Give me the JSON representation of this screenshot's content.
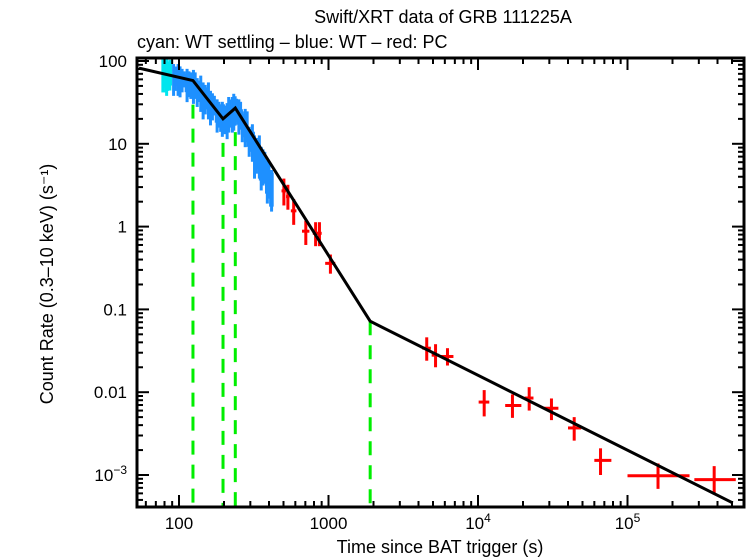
{
  "chart_data": {
    "type": "scatter",
    "title": "Swift/XRT data of GRB 111225A",
    "subtitle": "cyan: WT settling – blue: WT – red: PC",
    "xlabel": "Time since BAT trigger (s)",
    "ylabel": "Count Rate (0.3–10 keV) (s⁻¹)",
    "xscale": "log",
    "yscale": "log",
    "xlim": [
      54,
      610000
    ],
    "ylim": [
      0.00045,
      110
    ],
    "x_ticks": [
      {
        "value": 100,
        "label": "100",
        "sup": ""
      },
      {
        "value": 1000,
        "label": "1000",
        "sup": ""
      },
      {
        "value": 10000,
        "label": "10",
        "sup": "4"
      },
      {
        "value": 100000,
        "label": "10",
        "sup": "5"
      }
    ],
    "y_ticks": [
      {
        "value": 100,
        "label": "100",
        "sup": ""
      },
      {
        "value": 10,
        "label": "10",
        "sup": ""
      },
      {
        "value": 1,
        "label": "1",
        "sup": ""
      },
      {
        "value": 0.1,
        "label": "0.1",
        "sup": ""
      },
      {
        "value": 0.01,
        "label": "0.01",
        "sup": ""
      },
      {
        "value": 0.001,
        "label": "10",
        "sup": "−3"
      }
    ],
    "colors": {
      "wt_settling": "#00e5ee",
      "wt": "#1e90ff",
      "pc": "#ff0000",
      "fit": "#000000",
      "breaks": "#00ee00"
    },
    "series": [
      {
        "name": "WT settling",
        "color_key": "wt_settling",
        "style": "band",
        "points": [
          {
            "x": 78,
            "lo": 55,
            "hi": 95
          },
          {
            "x": 82,
            "lo": 50,
            "hi": 92
          },
          {
            "x": 86,
            "lo": 58,
            "hi": 90
          }
        ]
      },
      {
        "name": "WT",
        "color_key": "wt",
        "style": "band",
        "points": [
          {
            "x": 92,
            "lo": 50,
            "hi": 80
          },
          {
            "x": 100,
            "lo": 48,
            "hi": 75
          },
          {
            "x": 110,
            "lo": 42,
            "hi": 70
          },
          {
            "x": 120,
            "lo": 40,
            "hi": 68
          },
          {
            "x": 130,
            "lo": 32,
            "hi": 58
          },
          {
            "x": 145,
            "lo": 26,
            "hi": 48
          },
          {
            "x": 160,
            "lo": 22,
            "hi": 38
          },
          {
            "x": 175,
            "lo": 18,
            "hi": 30
          },
          {
            "x": 190,
            "lo": 16,
            "hi": 28
          },
          {
            "x": 200,
            "lo": 15,
            "hi": 27
          },
          {
            "x": 215,
            "lo": 18,
            "hi": 32
          },
          {
            "x": 230,
            "lo": 19,
            "hi": 35
          },
          {
            "x": 245,
            "lo": 17,
            "hi": 30
          },
          {
            "x": 265,
            "lo": 12,
            "hi": 23
          },
          {
            "x": 290,
            "lo": 8,
            "hi": 15
          },
          {
            "x": 320,
            "lo": 5,
            "hi": 11
          },
          {
            "x": 350,
            "lo": 3.6,
            "hi": 8
          },
          {
            "x": 380,
            "lo": 2.5,
            "hi": 5.5
          },
          {
            "x": 410,
            "lo": 2.0,
            "hi": 4.2
          }
        ]
      },
      {
        "name": "PC",
        "color_key": "pc",
        "style": "cross",
        "points": [
          {
            "x": 503,
            "y": 2.7,
            "xerr": [
              18,
              18
            ],
            "yerr": [
              0.9,
              1.1
            ]
          },
          {
            "x": 535,
            "y": 2.3,
            "xerr": [
              15,
              15
            ],
            "yerr": [
              0.7,
              0.9
            ]
          },
          {
            "x": 585,
            "y": 1.55,
            "xerr": [
              25,
              25
            ],
            "yerr": [
              0.5,
              0.6
            ]
          },
          {
            "x": 705,
            "y": 0.88,
            "xerr": [
              40,
              40
            ],
            "yerr": [
              0.28,
              0.3
            ]
          },
          {
            "x": 820,
            "y": 0.83,
            "xerr": [
              35,
              35
            ],
            "yerr": [
              0.25,
              0.3
            ]
          },
          {
            "x": 870,
            "y": 0.83,
            "xerr": [
              30,
              30
            ],
            "yerr": [
              0.25,
              0.3
            ]
          },
          {
            "x": 1030,
            "y": 0.36,
            "xerr": [
              80,
              80
            ],
            "yerr": [
              0.09,
              0.1
            ]
          },
          {
            "x": 4540,
            "y": 0.034,
            "xerr": [
              300,
              300
            ],
            "yerr": [
              0.01,
              0.012
            ]
          },
          {
            "x": 5200,
            "y": 0.028,
            "xerr": [
              300,
              300
            ],
            "yerr": [
              0.008,
              0.01
            ]
          },
          {
            "x": 6250,
            "y": 0.027,
            "xerr": [
              600,
              600
            ],
            "yerr": [
              0.006,
              0.007
            ]
          },
          {
            "x": 11000,
            "y": 0.0076,
            "xerr": [
              900,
              900
            ],
            "yerr": [
              0.0025,
              0.003
            ]
          },
          {
            "x": 17000,
            "y": 0.0069,
            "xerr": [
              1800,
              2500
            ],
            "yerr": [
              0.002,
              0.0025
            ]
          },
          {
            "x": 22000,
            "y": 0.0085,
            "xerr": [
              1500,
              1500
            ],
            "yerr": [
              0.0025,
              0.003
            ]
          },
          {
            "x": 31000,
            "y": 0.0064,
            "xerr": [
              3500,
              3500
            ],
            "yerr": [
              0.0018,
              0.002
            ]
          },
          {
            "x": 44000,
            "y": 0.0037,
            "xerr": [
              4000,
              5000
            ],
            "yerr": [
              0.0011,
              0.0013
            ]
          },
          {
            "x": 66000,
            "y": 0.0015,
            "xerr": [
              6000,
              12000
            ],
            "yerr": [
              0.0005,
              0.0006
            ]
          },
          {
            "x": 160000,
            "y": 0.00098,
            "xerr": [
              60000,
              100000
            ],
            "yerr": [
              0.0003,
              0.0004
            ]
          },
          {
            "x": 380000,
            "y": 0.00088,
            "xerr": [
              100000,
              150000
            ],
            "yerr": [
              0.0003,
              0.0004
            ]
          }
        ]
      }
    ],
    "fit_model": {
      "name": "broken power-law fit",
      "points": [
        {
          "x": 54,
          "y": 82
        },
        {
          "x": 124,
          "y": 58
        },
        {
          "x": 197,
          "y": 20
        },
        {
          "x": 238,
          "y": 27
        },
        {
          "x": 1900,
          "y": 0.072
        },
        {
          "x": 506000,
          "y": 0.00046
        }
      ]
    },
    "break_times": [
      124,
      197,
      238,
      1900
    ]
  }
}
